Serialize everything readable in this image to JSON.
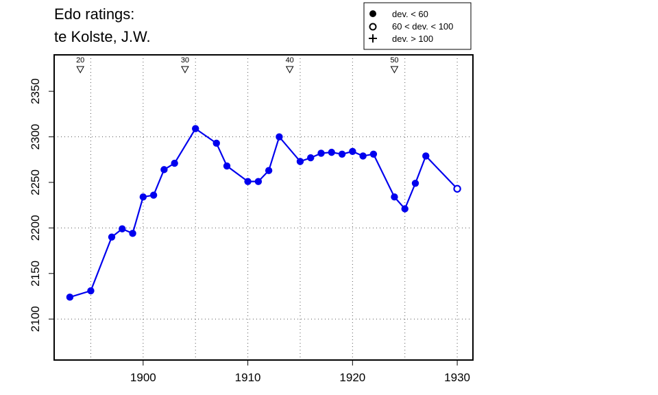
{
  "title_lines": [
    "Edo ratings:",
    "te Kolste, J.W."
  ],
  "legend": [
    {
      "symbol": "filled-circle",
      "label": "dev. < 60"
    },
    {
      "symbol": "open-circle",
      "label": "60 < dev. < 100"
    },
    {
      "symbol": "plus",
      "label": "dev. > 100"
    }
  ],
  "chart_data": {
    "type": "line",
    "title": "Edo ratings: te Kolste, J.W.",
    "xlabel": "",
    "ylabel": "",
    "xlim": [
      1891.5,
      1931.5
    ],
    "ylim": [
      2055,
      2390
    ],
    "x_ticks": [
      1900,
      1910,
      1920,
      1930
    ],
    "y_ticks": [
      2100,
      2150,
      2200,
      2250,
      2300,
      2350
    ],
    "grid_x": [
      1895,
      1900,
      1905,
      1910,
      1915,
      1920,
      1925,
      1930
    ],
    "grid_y": [
      2100,
      2200,
      2300
    ],
    "grid": "dotted",
    "legend_position": "top-right",
    "color": "#0000ee",
    "series": [
      {
        "points": [
          {
            "x": 1893,
            "y": 2124,
            "dev": "low"
          },
          {
            "x": 1895,
            "y": 2131,
            "dev": "low"
          },
          {
            "x": 1897,
            "y": 2190,
            "dev": "low"
          },
          {
            "x": 1898,
            "y": 2199,
            "dev": "low"
          },
          {
            "x": 1899,
            "y": 2194,
            "dev": "low"
          },
          {
            "x": 1900,
            "y": 2234,
            "dev": "low"
          },
          {
            "x": 1901,
            "y": 2236,
            "dev": "low"
          },
          {
            "x": 1902,
            "y": 2264,
            "dev": "low"
          },
          {
            "x": 1903,
            "y": 2271,
            "dev": "low"
          },
          {
            "x": 1905,
            "y": 2309,
            "dev": "low"
          },
          {
            "x": 1907,
            "y": 2293,
            "dev": "low"
          },
          {
            "x": 1908,
            "y": 2268,
            "dev": "low"
          },
          {
            "x": 1910,
            "y": 2251,
            "dev": "low"
          },
          {
            "x": 1911,
            "y": 2251,
            "dev": "low"
          },
          {
            "x": 1912,
            "y": 2263,
            "dev": "low"
          },
          {
            "x": 1913,
            "y": 2300,
            "dev": "low"
          },
          {
            "x": 1915,
            "y": 2273,
            "dev": "low"
          },
          {
            "x": 1916,
            "y": 2277,
            "dev": "low"
          },
          {
            "x": 1917,
            "y": 2282,
            "dev": "low"
          },
          {
            "x": 1918,
            "y": 2283,
            "dev": "low"
          },
          {
            "x": 1919,
            "y": 2281,
            "dev": "low"
          },
          {
            "x": 1920,
            "y": 2284,
            "dev": "low"
          },
          {
            "x": 1921,
            "y": 2279,
            "dev": "low"
          },
          {
            "x": 1922,
            "y": 2281,
            "dev": "low"
          },
          {
            "x": 1924,
            "y": 2234,
            "dev": "low"
          },
          {
            "x": 1925,
            "y": 2221,
            "dev": "low"
          },
          {
            "x": 1926,
            "y": 2249,
            "dev": "low"
          },
          {
            "x": 1927,
            "y": 2279,
            "dev": "low"
          },
          {
            "x": 1930,
            "y": 2243,
            "dev": "mid"
          }
        ]
      }
    ],
    "age_markers": [
      {
        "x": 1894,
        "label": "20"
      },
      {
        "x": 1904,
        "label": "30"
      },
      {
        "x": 1914,
        "label": "40"
      },
      {
        "x": 1924,
        "label": "50"
      }
    ]
  }
}
